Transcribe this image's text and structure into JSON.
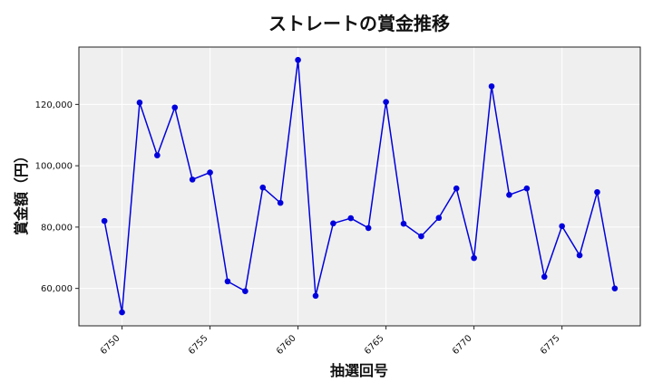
{
  "chart_data": {
    "type": "line",
    "title": "ストレートの賞金推移",
    "xlabel": "抽選回号",
    "ylabel": "賞金額（円）",
    "x": [
      6749,
      6750,
      6751,
      6752,
      6753,
      6754,
      6755,
      6756,
      6757,
      6758,
      6759,
      6760,
      6761,
      6762,
      6763,
      6764,
      6765,
      6766,
      6767,
      6768,
      6769,
      6770,
      6771,
      6772,
      6773,
      6774,
      6775,
      6776,
      6777,
      6778
    ],
    "series": [
      {
        "values": [
          82000,
          52200,
          120600,
          103400,
          119000,
          95500,
          97800,
          62300,
          59100,
          92900,
          87900,
          134500,
          57600,
          81200,
          82900,
          79700,
          120800,
          81100,
          77000,
          83000,
          92600,
          69900,
          125900,
          90500,
          92600,
          63800,
          80300,
          70800,
          91400,
          60000
        ],
        "color": "#0000dd",
        "marker": "circle"
      }
    ],
    "xlim": [
      6747.55,
      6779.45
    ],
    "ylim": [
      47800,
      138700
    ],
    "xticks": [
      6750,
      6755,
      6760,
      6765,
      6770,
      6775
    ],
    "yticks": [
      60000,
      80000,
      100000,
      120000
    ],
    "ytick_labels": [
      "60,000",
      "80,000",
      "100,000",
      "120,000"
    ],
    "grid": true,
    "plot_background": "#efefef",
    "grid_color": "#ffffff"
  }
}
